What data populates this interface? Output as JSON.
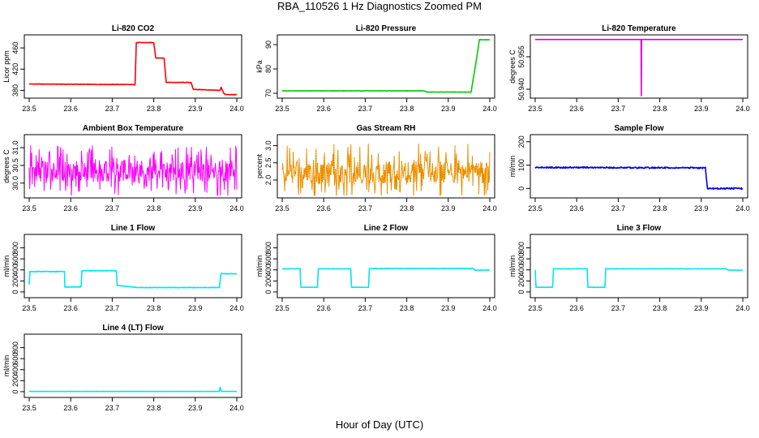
{
  "figure": {
    "title": "RBA_110526  1 Hz Diagnostics Zoomed PM",
    "xlabel": "Hour of Day (UTC)"
  },
  "chart_data": [
    {
      "type": "line",
      "title": "Li-820 CO2",
      "ylabel": "Licor ppm",
      "color": "#ff0000",
      "xlim": [
        23.5,
        24.0
      ],
      "ylim": [
        370,
        480
      ],
      "xticks": [
        23.5,
        23.6,
        23.7,
        23.8,
        23.9,
        24.0
      ],
      "yticks": [
        380,
        420,
        460
      ],
      "x": [
        23.5,
        23.755,
        23.758,
        23.8,
        23.805,
        23.825,
        23.83,
        23.89,
        23.895,
        23.96,
        23.962,
        23.97,
        23.975,
        24.0
      ],
      "y": [
        392,
        391,
        470,
        470,
        441,
        441,
        395,
        395,
        382,
        380,
        386,
        373,
        372,
        372
      ],
      "noise": 1
    },
    {
      "type": "line",
      "title": "Li-820 Pressure",
      "ylabel": "kPa",
      "color": "#00cc00",
      "xlim": [
        23.5,
        24.0
      ],
      "ylim": [
        69,
        93
      ],
      "xticks": [
        23.5,
        23.6,
        23.7,
        23.8,
        23.9,
        24.0
      ],
      "yticks": [
        70,
        80,
        90
      ],
      "x": [
        23.5,
        23.84,
        23.85,
        23.955,
        23.968,
        23.975,
        23.98,
        24.0
      ],
      "y": [
        71,
        71,
        70.5,
        70.5,
        84,
        92,
        92,
        92
      ],
      "noise": 0.15
    },
    {
      "type": "line",
      "title": "Li-820 Temperature",
      "ylabel": "degrees C",
      "color": "#dd00dd",
      "xlim": [
        23.5,
        24.0
      ],
      "ylim": [
        50.937,
        50.964
      ],
      "xticks": [
        23.5,
        23.6,
        23.7,
        23.8,
        23.9,
        24.0
      ],
      "yticks": [
        50.94,
        50.955
      ],
      "x": [
        23.5,
        23.755,
        23.7555,
        23.7565,
        24.0
      ],
      "y": [
        50.963,
        50.963,
        50.937,
        50.963,
        50.963
      ],
      "noise": 0
    },
    {
      "type": "line",
      "title": "Ambient Box Temperature",
      "ylabel": "degrees C",
      "color": "#ff00ff",
      "xlim": [
        23.5,
        24.0
      ],
      "ylim": [
        29.65,
        31.3
      ],
      "xticks": [
        23.5,
        23.6,
        23.7,
        23.8,
        23.9,
        24.0
      ],
      "yticks": [
        30.0,
        30.5,
        31.0
      ],
      "x": [
        23.5,
        24.0
      ],
      "y": [
        30.35,
        30.35
      ],
      "noise": 0.45,
      "noise_style": "spiky"
    },
    {
      "type": "line",
      "title": "Gas Stream RH",
      "ylabel": "percent",
      "color": "#ff9900",
      "xlim": [
        23.5,
        24.0
      ],
      "ylim": [
        1.55,
        3.25
      ],
      "xticks": [
        23.5,
        23.6,
        23.7,
        23.8,
        23.9,
        24.0
      ],
      "yticks": [
        2.0,
        2.5,
        3.0
      ],
      "x": [
        23.5,
        24.0
      ],
      "y": [
        2.25,
        2.25
      ],
      "noise": 0.5,
      "noise_style": "spiky",
      "points": true
    },
    {
      "type": "line",
      "title": "Sample Flow",
      "ylabel": "ml/min",
      "color": "#0000ee",
      "xlim": [
        23.5,
        24.0
      ],
      "ylim": [
        -30,
        220
      ],
      "xticks": [
        23.5,
        23.6,
        23.7,
        23.8,
        23.9,
        24.0
      ],
      "yticks": [
        0,
        100,
        200
      ],
      "x": [
        23.5,
        23.91,
        23.915,
        24.0
      ],
      "y": [
        90,
        88,
        0,
        0
      ],
      "noise": 6
    },
    {
      "type": "line",
      "title": "Line 1 Flow",
      "ylabel": "ml/min",
      "color": "#00e5ee",
      "xlim": [
        23.5,
        24.0
      ],
      "ylim": [
        -60,
        1000
      ],
      "xticks": [
        23.5,
        23.6,
        23.7,
        23.8,
        23.9,
        24.0
      ],
      "yticks": [
        0,
        200,
        400,
        600,
        800
      ],
      "x": [
        23.5,
        23.502,
        23.585,
        23.586,
        23.625,
        23.627,
        23.71,
        23.712,
        23.76,
        23.958,
        23.962,
        24.0
      ],
      "y": [
        130,
        370,
        370,
        90,
        90,
        385,
        385,
        120,
        80,
        80,
        330,
        330
      ],
      "noise": 10
    },
    {
      "type": "line",
      "title": "Line 2 Flow",
      "ylabel": "ml/min",
      "color": "#00e5ee",
      "xlim": [
        23.5,
        24.0
      ],
      "ylim": [
        -60,
        1000
      ],
      "xticks": [
        23.5,
        23.6,
        23.7,
        23.8,
        23.9,
        24.0
      ],
      "yticks": [
        0,
        200,
        400,
        600,
        800
      ],
      "x": [
        23.5,
        23.543,
        23.545,
        23.585,
        23.587,
        23.665,
        23.667,
        23.708,
        23.71,
        23.96,
        23.965,
        24.0
      ],
      "y": [
        420,
        420,
        85,
        85,
        420,
        420,
        85,
        85,
        425,
        425,
        395,
        395
      ],
      "noise": 8
    },
    {
      "type": "line",
      "title": "Line 3 Flow",
      "ylabel": "ml/min",
      "color": "#00e5ee",
      "xlim": [
        23.5,
        24.0
      ],
      "ylim": [
        -60,
        1000
      ],
      "xticks": [
        23.5,
        23.6,
        23.7,
        23.8,
        23.9,
        24.0
      ],
      "yticks": [
        0,
        200,
        400,
        600,
        800
      ],
      "x": [
        23.5,
        23.502,
        23.542,
        23.544,
        23.625,
        23.627,
        23.668,
        23.67,
        23.96,
        23.965,
        24.0
      ],
      "y": [
        400,
        85,
        85,
        420,
        420,
        85,
        85,
        420,
        420,
        395,
        395
      ],
      "noise": 8
    },
    {
      "type": "line",
      "title": "Line 4 (LT) Flow",
      "ylabel": "ml/min",
      "color": "#00e5ee",
      "xlim": [
        23.5,
        24.0
      ],
      "ylim": [
        -60,
        1000
      ],
      "xticks": [
        23.5,
        23.6,
        23.7,
        23.8,
        23.9,
        24.0
      ],
      "yticks": [
        0,
        200,
        400,
        600,
        800
      ],
      "x": [
        23.5,
        23.958,
        23.96,
        23.962,
        23.964,
        24.0
      ],
      "y": [
        5,
        5,
        80,
        20,
        5,
        5
      ],
      "noise": 2
    }
  ]
}
